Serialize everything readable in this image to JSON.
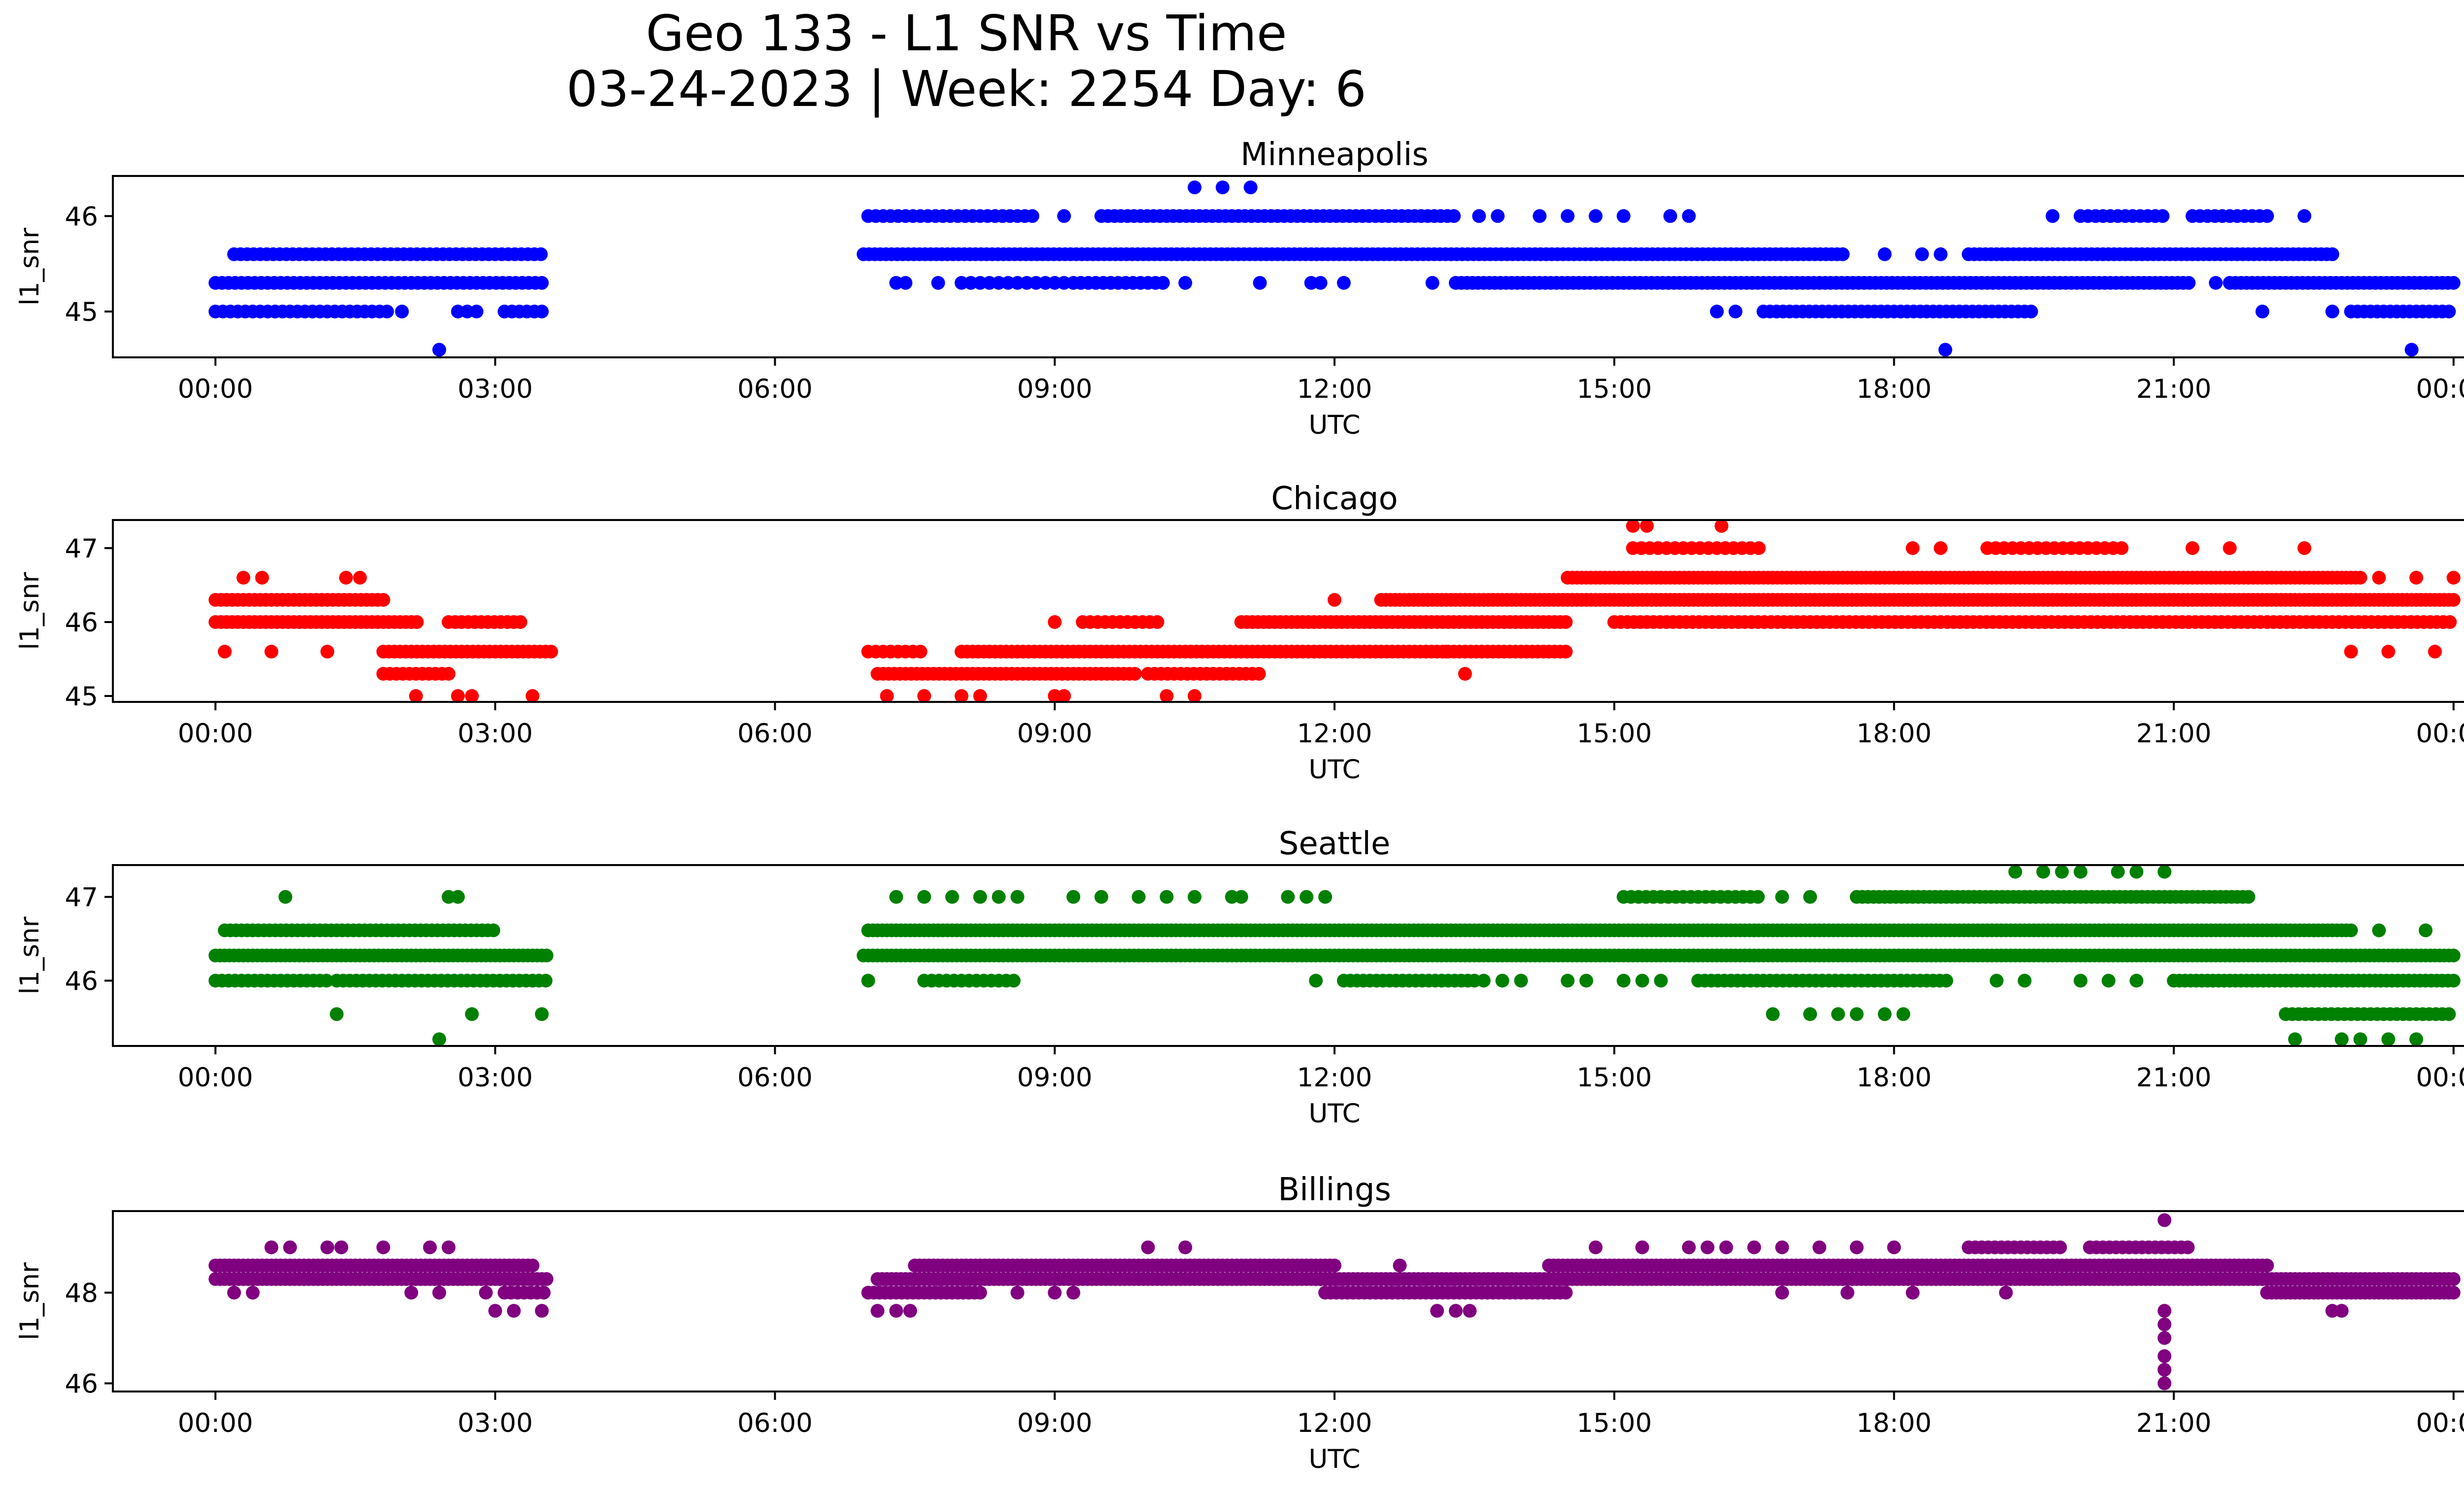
{
  "figure": {
    "title_line1": "Geo 133 - L1 SNR vs Time",
    "title_line2": "03-24-2023 | Week: 2254 Day: 6"
  },
  "chart_data": [
    {
      "type": "scatter",
      "title": "Minneapolis",
      "xlabel": "UTC",
      "ylabel": "l1_snr",
      "color": "#0000ff",
      "xlim_hours": [
        -1.1,
        25.1
      ],
      "ylim": [
        44.52,
        46.42
      ],
      "yticks": [
        45,
        46
      ],
      "ytick_labels": [
        "45",
        "46"
      ],
      "xticks_hours": [
        0,
        3,
        6,
        9,
        12,
        15,
        18,
        21,
        24
      ],
      "xtick_labels": [
        "00:00",
        "03:00",
        "06:00",
        "09:00",
        "12:00",
        "15:00",
        "18:00",
        "21:00",
        "00:00"
      ],
      "bands": [
        {
          "y": 45.6,
          "start": 0.2,
          "end": 3.5,
          "step": 0.07
        },
        {
          "y": 45.3,
          "start": 0.0,
          "end": 3.55,
          "step": 0.07
        },
        {
          "y": 45.0,
          "start": 0.0,
          "end": 1.85,
          "step": 0.08
        },
        {
          "y": 45.0,
          "start": 3.1,
          "end": 3.55,
          "step": 0.08
        },
        {
          "y": 46.0,
          "start": 7.0,
          "end": 8.8,
          "step": 0.08
        },
        {
          "y": 46.0,
          "start": 9.5,
          "end": 13.3,
          "step": 0.07
        },
        {
          "y": 45.6,
          "start": 6.95,
          "end": 17.5,
          "step": 0.06
        },
        {
          "y": 45.3,
          "start": 8.0,
          "end": 9.1,
          "step": 0.1
        },
        {
          "y": 45.3,
          "start": 9.2,
          "end": 10.2,
          "step": 0.08
        },
        {
          "y": 45.3,
          "start": 13.3,
          "end": 21.2,
          "step": 0.06
        },
        {
          "y": 45.3,
          "start": 21.6,
          "end": 24.0,
          "step": 0.06
        },
        {
          "y": 45.0,
          "start": 16.6,
          "end": 19.5,
          "step": 0.07
        },
        {
          "y": 45.6,
          "start": 18.8,
          "end": 22.7,
          "step": 0.06
        },
        {
          "y": 46.0,
          "start": 20.0,
          "end": 20.9,
          "step": 0.08
        },
        {
          "y": 46.0,
          "start": 21.2,
          "end": 22.0,
          "step": 0.08
        },
        {
          "y": 45.0,
          "start": 22.9,
          "end": 24.0,
          "step": 0.07
        }
      ],
      "points": [
        [
          2.4,
          44.6
        ],
        [
          18.55,
          44.6
        ],
        [
          23.55,
          44.6
        ],
        [
          10.5,
          46.3
        ],
        [
          10.8,
          46.3
        ],
        [
          11.1,
          46.3
        ],
        [
          9.1,
          46.0
        ],
        [
          13.55,
          46.0
        ],
        [
          13.75,
          46.0
        ],
        [
          14.2,
          46.0
        ],
        [
          14.5,
          46.0
        ],
        [
          14.8,
          46.0
        ],
        [
          15.1,
          46.0
        ],
        [
          15.6,
          46.0
        ],
        [
          15.8,
          46.0
        ],
        [
          19.7,
          46.0
        ],
        [
          22.4,
          46.0
        ],
        [
          7.3,
          45.3
        ],
        [
          7.4,
          45.3
        ],
        [
          7.75,
          45.3
        ],
        [
          10.4,
          45.3
        ],
        [
          11.2,
          45.3
        ],
        [
          11.75,
          45.3
        ],
        [
          11.85,
          45.3
        ],
        [
          12.1,
          45.3
        ],
        [
          13.05,
          45.3
        ],
        [
          21.45,
          45.3
        ],
        [
          17.9,
          45.6
        ],
        [
          18.3,
          45.6
        ],
        [
          18.5,
          45.6
        ],
        [
          2.0,
          45.0
        ],
        [
          2.6,
          45.0
        ],
        [
          2.7,
          45.0
        ],
        [
          2.8,
          45.0
        ],
        [
          16.1,
          45.0
        ],
        [
          16.3,
          45.0
        ],
        [
          21.95,
          45.0
        ],
        [
          22.7,
          45.0
        ]
      ]
    },
    {
      "type": "scatter",
      "title": "Chicago",
      "xlabel": "UTC",
      "ylabel": "l1_snr",
      "color": "#ff0000",
      "xlim_hours": [
        -1.1,
        25.1
      ],
      "ylim": [
        44.92,
        47.38
      ],
      "yticks": [
        45,
        46,
        47
      ],
      "ytick_labels": [
        "45",
        "46",
        "47"
      ],
      "xticks_hours": [
        0,
        3,
        6,
        9,
        12,
        15,
        18,
        21,
        24
      ],
      "xtick_labels": [
        "00:00",
        "03:00",
        "06:00",
        "09:00",
        "12:00",
        "15:00",
        "18:00",
        "21:00",
        "00:00"
      ],
      "bands": [
        {
          "y": 46.3,
          "start": 0.0,
          "end": 1.8,
          "step": 0.06
        },
        {
          "y": 46.0,
          "start": 0.0,
          "end": 2.2,
          "step": 0.06
        },
        {
          "y": 46.0,
          "start": 2.5,
          "end": 3.3,
          "step": 0.07
        },
        {
          "y": 45.6,
          "start": 1.8,
          "end": 3.6,
          "step": 0.06
        },
        {
          "y": 45.3,
          "start": 1.8,
          "end": 2.5,
          "step": 0.07
        },
        {
          "y": 45.6,
          "start": 7.0,
          "end": 7.6,
          "step": 0.08
        },
        {
          "y": 45.3,
          "start": 7.1,
          "end": 9.9,
          "step": 0.06
        },
        {
          "y": 45.6,
          "start": 8.0,
          "end": 14.5,
          "step": 0.06
        },
        {
          "y": 45.3,
          "start": 10.0,
          "end": 11.2,
          "step": 0.07
        },
        {
          "y": 46.0,
          "start": 9.3,
          "end": 10.1,
          "step": 0.08
        },
        {
          "y": 46.0,
          "start": 11.0,
          "end": 14.5,
          "step": 0.06
        },
        {
          "y": 46.3,
          "start": 12.5,
          "end": 24.0,
          "step": 0.05
        },
        {
          "y": 46.6,
          "start": 14.5,
          "end": 23.0,
          "step": 0.05
        },
        {
          "y": 46.0,
          "start": 15.0,
          "end": 24.0,
          "step": 0.07
        },
        {
          "y": 47.0,
          "start": 15.2,
          "end": 16.6,
          "step": 0.09
        },
        {
          "y": 47.0,
          "start": 19.0,
          "end": 20.5,
          "step": 0.09
        }
      ],
      "points": [
        [
          0.1,
          45.6
        ],
        [
          0.6,
          45.6
        ],
        [
          1.2,
          45.6
        ],
        [
          0.3,
          46.6
        ],
        [
          0.5,
          46.6
        ],
        [
          1.4,
          46.6
        ],
        [
          1.55,
          46.6
        ],
        [
          2.15,
          45.0
        ],
        [
          2.6,
          45.0
        ],
        [
          2.75,
          45.0
        ],
        [
          3.4,
          45.0
        ],
        [
          7.2,
          45.0
        ],
        [
          7.6,
          45.0
        ],
        [
          8.0,
          45.0
        ],
        [
          8.2,
          45.0
        ],
        [
          9.0,
          45.0
        ],
        [
          9.1,
          45.0
        ],
        [
          10.2,
          45.0
        ],
        [
          10.5,
          45.0
        ],
        [
          9.0,
          46.0
        ],
        [
          12.0,
          46.3
        ],
        [
          13.4,
          45.3
        ],
        [
          13.2,
          45.6
        ],
        [
          15.2,
          47.3
        ],
        [
          15.35,
          47.3
        ],
        [
          16.15,
          47.3
        ],
        [
          18.2,
          47.0
        ],
        [
          18.5,
          47.0
        ],
        [
          21.2,
          47.0
        ],
        [
          21.6,
          47.0
        ],
        [
          22.4,
          47.0
        ],
        [
          23.2,
          46.6
        ],
        [
          23.6,
          46.6
        ],
        [
          24.0,
          46.6
        ],
        [
          22.9,
          45.6
        ],
        [
          23.3,
          45.6
        ],
        [
          23.8,
          45.6
        ]
      ]
    },
    {
      "type": "scatter",
      "title": "Seattle",
      "xlabel": "UTC",
      "ylabel": "l1_snr",
      "color": "#008000",
      "xlim_hours": [
        -1.1,
        25.1
      ],
      "ylim": [
        45.22,
        47.38
      ],
      "yticks": [
        46,
        47
      ],
      "ytick_labels": [
        "46",
        "47"
      ],
      "xticks_hours": [
        0,
        3,
        6,
        9,
        12,
        15,
        18,
        21,
        24
      ],
      "xtick_labels": [
        "00:00",
        "03:00",
        "06:00",
        "09:00",
        "12:00",
        "15:00",
        "18:00",
        "21:00",
        "00:00"
      ],
      "bands": [
        {
          "y": 46.6,
          "start": 0.1,
          "end": 3.0,
          "step": 0.06
        },
        {
          "y": 46.3,
          "start": 0.0,
          "end": 3.55,
          "step": 0.05
        },
        {
          "y": 46.0,
          "start": 0.0,
          "end": 1.2,
          "step": 0.07
        },
        {
          "y": 46.0,
          "start": 1.3,
          "end": 3.55,
          "step": 0.07
        },
        {
          "y": 46.6,
          "start": 7.0,
          "end": 22.9,
          "step": 0.05
        },
        {
          "y": 46.3,
          "start": 6.95,
          "end": 24.0,
          "step": 0.05
        },
        {
          "y": 46.0,
          "start": 7.6,
          "end": 8.6,
          "step": 0.08
        },
        {
          "y": 46.0,
          "start": 12.1,
          "end": 13.5,
          "step": 0.07
        },
        {
          "y": 46.0,
          "start": 15.9,
          "end": 18.6,
          "step": 0.07
        },
        {
          "y": 46.0,
          "start": 21.0,
          "end": 24.0,
          "step": 0.06
        },
        {
          "y": 47.0,
          "start": 15.1,
          "end": 16.6,
          "step": 0.08
        },
        {
          "y": 47.0,
          "start": 17.6,
          "end": 21.8,
          "step": 0.06
        },
        {
          "y": 45.6,
          "start": 22.2,
          "end": 24.0,
          "step": 0.07
        }
      ],
      "points": [
        [
          0.75,
          47.0
        ],
        [
          2.5,
          47.0
        ],
        [
          2.6,
          47.0
        ],
        [
          1.3,
          45.6
        ],
        [
          2.75,
          45.6
        ],
        [
          3.5,
          45.6
        ],
        [
          2.4,
          45.3
        ],
        [
          7.3,
          47.0
        ],
        [
          7.6,
          47.0
        ],
        [
          7.9,
          47.0
        ],
        [
          8.2,
          47.0
        ],
        [
          8.4,
          47.0
        ],
        [
          8.6,
          47.0
        ],
        [
          9.2,
          47.0
        ],
        [
          9.5,
          47.0
        ],
        [
          9.9,
          47.0
        ],
        [
          10.2,
          47.0
        ],
        [
          10.5,
          47.0
        ],
        [
          10.9,
          47.0
        ],
        [
          11.0,
          47.0
        ],
        [
          11.5,
          47.0
        ],
        [
          11.7,
          47.0
        ],
        [
          11.9,
          47.0
        ],
        [
          7.0,
          46.0
        ],
        [
          11.8,
          46.0
        ],
        [
          13.6,
          46.0
        ],
        [
          13.8,
          46.0
        ],
        [
          14.0,
          46.0
        ],
        [
          14.5,
          46.0
        ],
        [
          14.7,
          46.0
        ],
        [
          15.1,
          46.0
        ],
        [
          15.3,
          46.0
        ],
        [
          15.5,
          46.0
        ],
        [
          19.1,
          46.0
        ],
        [
          19.4,
          46.0
        ],
        [
          20.0,
          46.0
        ],
        [
          20.3,
          46.0
        ],
        [
          20.6,
          46.0
        ],
        [
          16.7,
          45.6
        ],
        [
          17.1,
          45.6
        ],
        [
          17.4,
          45.6
        ],
        [
          17.6,
          45.6
        ],
        [
          17.9,
          45.6
        ],
        [
          18.1,
          45.6
        ],
        [
          16.8,
          47.0
        ],
        [
          17.1,
          47.0
        ],
        [
          19.3,
          47.3
        ],
        [
          19.6,
          47.3
        ],
        [
          19.8,
          47.3
        ],
        [
          20.0,
          47.3
        ],
        [
          20.4,
          47.3
        ],
        [
          20.6,
          47.3
        ],
        [
          20.9,
          47.3
        ],
        [
          22.3,
          45.3
        ],
        [
          22.8,
          45.3
        ],
        [
          23.0,
          45.3
        ],
        [
          23.3,
          45.3
        ],
        [
          23.6,
          45.3
        ],
        [
          23.2,
          46.6
        ],
        [
          23.7,
          46.6
        ]
      ]
    },
    {
      "type": "scatter",
      "title": "Billings",
      "xlabel": "UTC",
      "ylabel": "l1_snr",
      "color": "#800080",
      "xlim_hours": [
        -1.1,
        25.1
      ],
      "ylim": [
        45.82,
        49.8
      ],
      "yticks": [
        46,
        48
      ],
      "ytick_labels": [
        "46",
        "48"
      ],
      "xticks_hours": [
        0,
        3,
        6,
        9,
        12,
        15,
        18,
        21,
        24
      ],
      "xtick_labels": [
        "00:00",
        "03:00",
        "06:00",
        "09:00",
        "12:00",
        "15:00",
        "18:00",
        "21:00",
        "00:00"
      ],
      "bands": [
        {
          "y": 48.6,
          "start": 0.0,
          "end": 3.4,
          "step": 0.05
        },
        {
          "y": 48.3,
          "start": 0.0,
          "end": 3.55,
          "step": 0.05
        },
        {
          "y": 48.0,
          "start": 3.1,
          "end": 3.55,
          "step": 0.07
        },
        {
          "y": 48.0,
          "start": 7.0,
          "end": 8.2,
          "step": 0.06
        },
        {
          "y": 48.3,
          "start": 7.1,
          "end": 12.0,
          "step": 0.05
        },
        {
          "y": 48.6,
          "start": 7.5,
          "end": 12.0,
          "step": 0.05
        },
        {
          "y": 48.3,
          "start": 11.8,
          "end": 14.5,
          "step": 0.05
        },
        {
          "y": 48.0,
          "start": 11.9,
          "end": 14.5,
          "step": 0.06
        },
        {
          "y": 48.3,
          "start": 14.5,
          "end": 24.0,
          "step": 0.05
        },
        {
          "y": 48.6,
          "start": 14.3,
          "end": 22.0,
          "step": 0.05
        },
        {
          "y": 48.0,
          "start": 22.0,
          "end": 24.0,
          "step": 0.05
        },
        {
          "y": 49.0,
          "start": 18.8,
          "end": 19.8,
          "step": 0.07
        },
        {
          "y": 49.0,
          "start": 20.1,
          "end": 21.2,
          "step": 0.07
        }
      ],
      "points": [
        [
          0.6,
          49.0
        ],
        [
          0.8,
          49.0
        ],
        [
          1.2,
          49.0
        ],
        [
          1.35,
          49.0
        ],
        [
          1.8,
          49.0
        ],
        [
          2.3,
          49.0
        ],
        [
          2.5,
          49.0
        ],
        [
          0.2,
          48.0
        ],
        [
          0.4,
          48.0
        ],
        [
          2.1,
          48.0
        ],
        [
          2.4,
          48.0
        ],
        [
          2.9,
          48.0
        ],
        [
          3.0,
          47.6
        ],
        [
          3.2,
          47.6
        ],
        [
          3.5,
          47.6
        ],
        [
          7.1,
          47.6
        ],
        [
          7.3,
          47.6
        ],
        [
          7.45,
          47.6
        ],
        [
          9.0,
          48.0
        ],
        [
          9.2,
          48.0
        ],
        [
          8.6,
          48.0
        ],
        [
          10.0,
          49.0
        ],
        [
          10.4,
          49.0
        ],
        [
          12.7,
          48.6
        ],
        [
          13.1,
          47.6
        ],
        [
          13.3,
          47.6
        ],
        [
          13.45,
          47.6
        ],
        [
          14.8,
          49.0
        ],
        [
          15.3,
          49.0
        ],
        [
          15.8,
          49.0
        ],
        [
          16.0,
          49.0
        ],
        [
          16.2,
          49.0
        ],
        [
          16.5,
          49.0
        ],
        [
          16.8,
          49.0
        ],
        [
          17.2,
          49.0
        ],
        [
          17.6,
          49.0
        ],
        [
          18.0,
          49.0
        ],
        [
          20.9,
          49.6
        ],
        [
          20.9,
          47.6
        ],
        [
          20.9,
          47.3
        ],
        [
          20.9,
          47.0
        ],
        [
          20.9,
          46.6
        ],
        [
          20.9,
          46.3
        ],
        [
          20.9,
          46.0
        ],
        [
          16.8,
          48.0
        ],
        [
          17.5,
          48.0
        ],
        [
          18.2,
          48.0
        ],
        [
          19.2,
          48.0
        ],
        [
          22.7,
          47.6
        ],
        [
          22.8,
          47.6
        ]
      ]
    }
  ]
}
